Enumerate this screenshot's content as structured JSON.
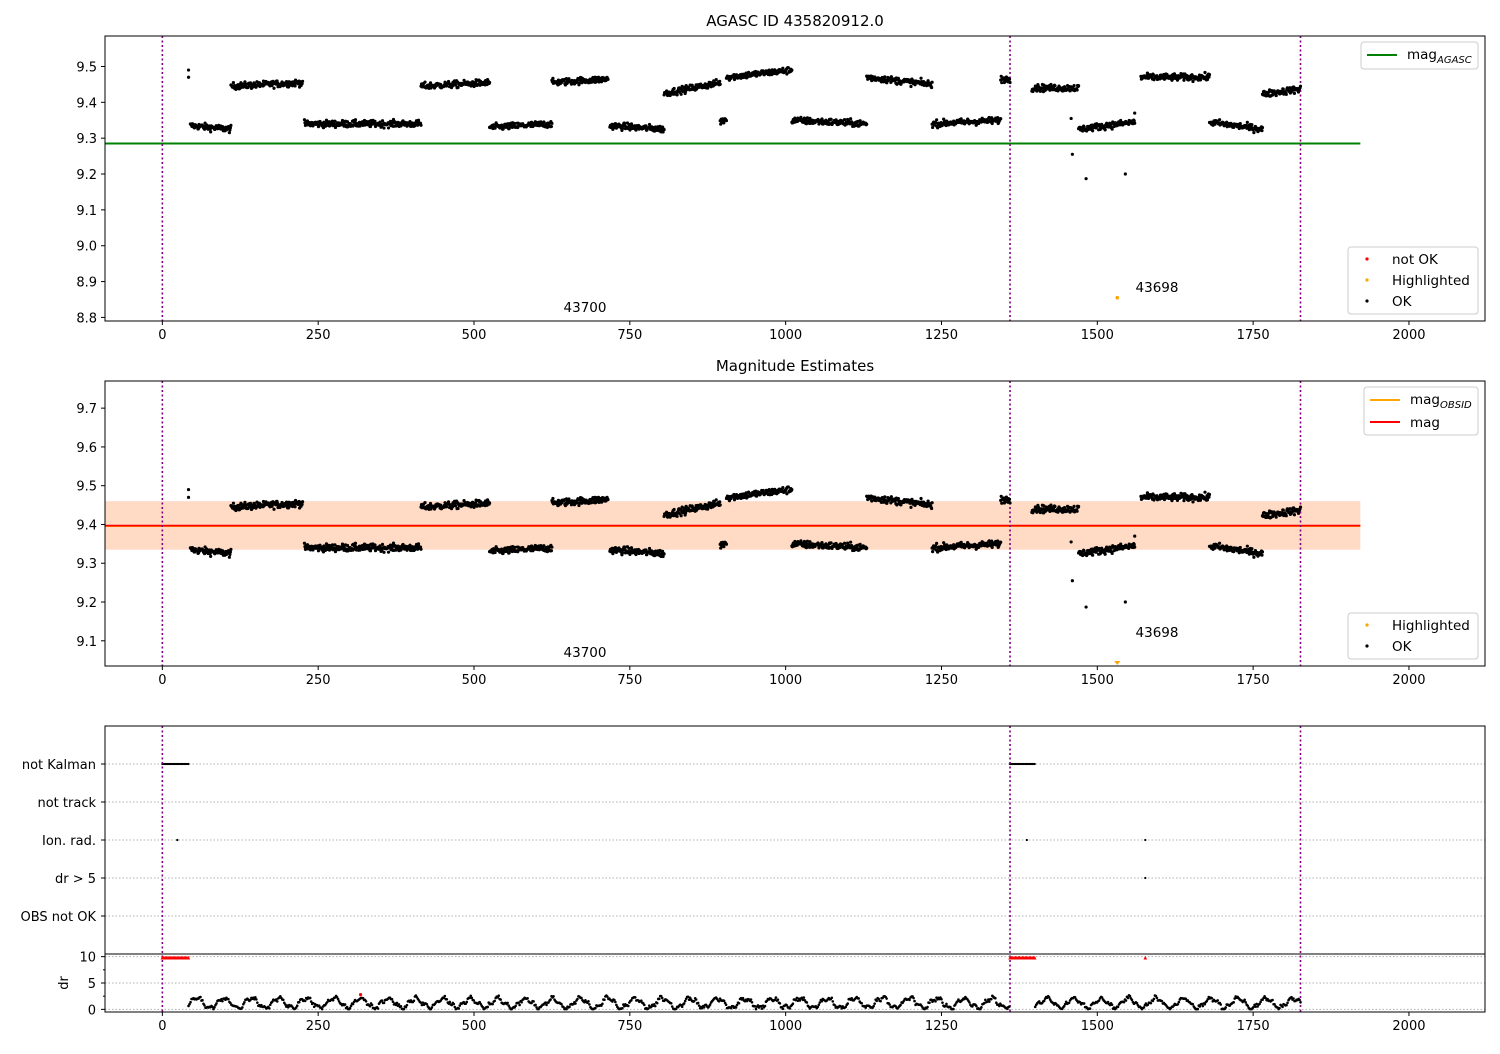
{
  "chart_data": [
    {
      "type": "scatter",
      "title": "AGASC ID 435820912.0",
      "xlim": [
        -92,
        2122
      ],
      "ylim": [
        8.79,
        9.585
      ],
      "xticks": [
        0,
        250,
        500,
        750,
        1000,
        1250,
        1500,
        1750,
        2000
      ],
      "yticks": [
        8.8,
        8.9,
        9.0,
        9.1,
        9.2,
        9.3,
        9.4,
        9.5
      ],
      "obs_boundaries": [
        0,
        1360,
        1826
      ],
      "agasc_mag": 9.285,
      "agasc_mag_span": [
        -92,
        1922
      ],
      "obsid_labels": [
        {
          "text": "43700",
          "x": 678,
          "y": 8.82
        },
        {
          "text": "43698",
          "x": 1570,
          "y": 8.875
        }
      ],
      "highlighted_points": [
        {
          "x": 1532,
          "y": 8.855
        }
      ],
      "outlier_points": [
        {
          "x": 42,
          "y": 9.49
        },
        {
          "x": 42,
          "y": 9.47
        },
        {
          "x": 1458,
          "y": 9.355
        },
        {
          "x": 1460,
          "y": 9.255
        },
        {
          "x": 1482,
          "y": 9.187
        },
        {
          "x": 1545,
          "y": 9.2
        },
        {
          "x": 1560,
          "y": 9.37
        }
      ],
      "segments": [
        {
          "x": [
            45,
            110
          ],
          "y": 9.33,
          "trend": -0.01
        },
        {
          "x": [
            110,
            225
          ],
          "y": 9.45,
          "trend": 0.01
        },
        {
          "x": [
            228,
            415
          ],
          "y": 9.34,
          "trend": 0.0
        },
        {
          "x": [
            415,
            525
          ],
          "y": 9.45,
          "trend": 0.01
        },
        {
          "x": [
            525,
            625
          ],
          "y": 9.335,
          "trend": 0.01
        },
        {
          "x": [
            625,
            715
          ],
          "y": 9.46,
          "trend": 0.01
        },
        {
          "x": [
            718,
            805
          ],
          "y": 9.33,
          "trend": -0.01
        },
        {
          "x": [
            805,
            895
          ],
          "y": 9.44,
          "trend": 0.03
        },
        {
          "x": [
            895,
            905
          ],
          "y": 9.35,
          "trend": 0.01
        },
        {
          "x": [
            905,
            1010
          ],
          "y": 9.48,
          "trend": 0.02
        },
        {
          "x": [
            1010,
            1130
          ],
          "y": 9.345,
          "trend": -0.01
        },
        {
          "x": [
            1130,
            1235
          ],
          "y": 9.46,
          "trend": -0.02
        },
        {
          "x": [
            1235,
            1345
          ],
          "y": 9.345,
          "trend": 0.01
        },
        {
          "x": [
            1345,
            1360
          ],
          "y": 9.465,
          "trend": 0.0
        },
        {
          "x": [
            1395,
            1470
          ],
          "y": 9.44,
          "trend": 0.0
        },
        {
          "x": [
            1470,
            1560
          ],
          "y": 9.335,
          "trend": 0.02
        },
        {
          "x": [
            1570,
            1680
          ],
          "y": 9.47,
          "trend": 0.0
        },
        {
          "x": [
            1680,
            1765
          ],
          "y": 9.335,
          "trend": -0.02
        },
        {
          "x": [
            1765,
            1826
          ],
          "y": 9.43,
          "trend": 0.015
        }
      ],
      "series": [
        {
          "name": "not OK",
          "color": "#ff0000"
        },
        {
          "name": "Highlighted",
          "color": "#ffa500"
        },
        {
          "name": "OK",
          "color": "#000000"
        }
      ],
      "legend": {
        "upper_right": "mag",
        "upper_right_sub": "AGASC",
        "lower_right": [
          "not OK",
          "Highlighted",
          "OK"
        ]
      }
    },
    {
      "type": "scatter",
      "title": "Magnitude Estimates",
      "xlim": [
        -92,
        2122
      ],
      "ylim": [
        9.035,
        9.77
      ],
      "xticks": [
        0,
        250,
        500,
        750,
        1000,
        1250,
        1500,
        1750,
        2000
      ],
      "yticks": [
        9.1,
        9.2,
        9.3,
        9.4,
        9.5,
        9.6,
        9.7
      ],
      "mag": 9.397,
      "mag_band": [
        9.335,
        9.46
      ],
      "mag_span": [
        -92,
        1922
      ],
      "obsid_mag": 9.396,
      "obsid_mag_spans": [
        [
          -92,
          1360
        ],
        [
          1360,
          1922
        ]
      ],
      "obsid_labels": [
        {
          "text": "43700",
          "x": 678,
          "y": 9.055
        },
        {
          "text": "43698",
          "x": 1570,
          "y": 9.115
        }
      ],
      "highlighted_points": [
        {
          "x": 1532,
          "y": 9.04
        }
      ],
      "legend": {
        "upper_right": [
          "mag",
          "mag"
        ],
        "upper_right_sub": [
          "OBSID",
          ""
        ],
        "lower_right": [
          "Highlighted",
          "OK"
        ]
      }
    },
    {
      "type": "scatter",
      "title": "",
      "xlim": [
        -92,
        2122
      ],
      "xticks": [
        0,
        250,
        500,
        750,
        1000,
        1250,
        1500,
        1750,
        2000
      ],
      "flag_rows": [
        "not Kalman",
        "not track",
        "Ion. rad.",
        "dr > 5",
        "OBS not OK"
      ],
      "flags": {
        "not Kalman": [
          [
            0,
            42
          ],
          [
            1360,
            1400
          ]
        ],
        "not track": [],
        "Ion. rad.": [
          [
            24
          ],
          [
            1387
          ],
          [
            1577
          ]
        ],
        "dr > 5": [
          [
            1577
          ]
        ],
        "OBS not OK": []
      },
      "dr_ylim": [
        -0.5,
        10.5
      ],
      "dr_yticks": [
        0,
        5,
        10
      ],
      "dr_ylabel": "dr",
      "dr_capped": [
        [
          0,
          42
        ],
        [
          1360,
          1400
        ],
        [
          1577
        ]
      ],
      "dr_peak": {
        "x": 318,
        "y": 2.8
      }
    }
  ]
}
